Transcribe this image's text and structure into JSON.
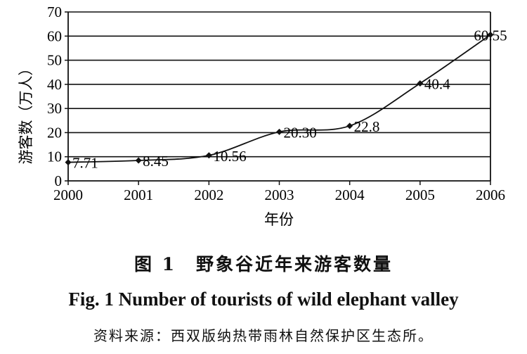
{
  "chart_data": {
    "type": "line",
    "x": [
      2000,
      2001,
      2002,
      2003,
      2004,
      2005,
      2006
    ],
    "series": [
      {
        "values": [
          7.71,
          8.45,
          10.56,
          20.3,
          22.8,
          40.4,
          60.55
        ]
      }
    ],
    "data_labels": [
      "7.71",
      "8.45",
      "10.56",
      "20.30",
      "22.8",
      "40.4",
      "60.55"
    ],
    "ylabel": "游客数（万人）",
    "xlabel": "年份",
    "ylim": [
      0,
      70
    ],
    "yticks": [
      0,
      10,
      20,
      30,
      40,
      50,
      60,
      70
    ],
    "grid": true,
    "line_color": "#111111"
  },
  "captions": {
    "chinese": "图 1　野象谷近年来游客数量",
    "english": "Fig. 1   Number of tourists of wild elephant valley",
    "source": "资料来源：西双版纳热带雨林自然保护区生态所。"
  }
}
